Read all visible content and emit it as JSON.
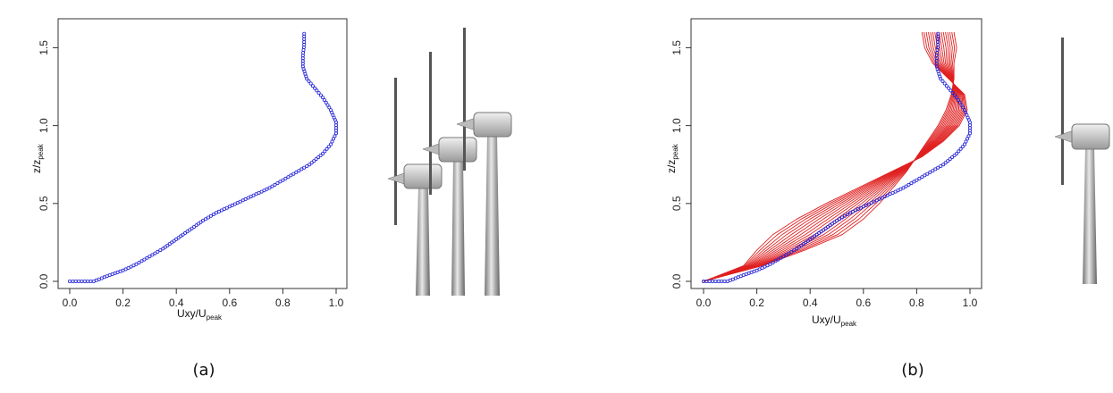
{
  "chart_data": [
    {
      "panel": "a",
      "type": "scatter",
      "caption": "(a)",
      "xlabel": "Uxy/U",
      "xlabel_sub": "peak",
      "ylabel": "z/z",
      "ylabel_sub": "peak",
      "xlim": [
        0,
        1.0
      ],
      "ylim": [
        0,
        1.6
      ],
      "xticks": [
        "0.0",
        "0.2",
        "0.4",
        "0.6",
        "0.8",
        "1.0"
      ],
      "yticks": [
        "0.0",
        "0.5",
        "1.0",
        "1.5"
      ],
      "marker_color": "#1f1fd6",
      "series": [
        {
          "points": [
            [
              0.0,
              0.0
            ],
            [
              0.09,
              0.0
            ],
            [
              0.12,
              0.02
            ],
            [
              0.15,
              0.04
            ],
            [
              0.2,
              0.07
            ],
            [
              0.25,
              0.11
            ],
            [
              0.3,
              0.16
            ],
            [
              0.35,
              0.21
            ],
            [
              0.4,
              0.27
            ],
            [
              0.45,
              0.33
            ],
            [
              0.5,
              0.39
            ],
            [
              0.55,
              0.44
            ],
            [
              0.6,
              0.48
            ],
            [
              0.65,
              0.52
            ],
            [
              0.7,
              0.56
            ],
            [
              0.75,
              0.6
            ],
            [
              0.8,
              0.65
            ],
            [
              0.85,
              0.7
            ],
            [
              0.9,
              0.75
            ],
            [
              0.95,
              0.82
            ],
            [
              0.98,
              0.88
            ],
            [
              1.0,
              0.95
            ],
            [
              1.0,
              1.02
            ],
            [
              0.98,
              1.1
            ],
            [
              0.95,
              1.18
            ],
            [
              0.92,
              1.24
            ],
            [
              0.89,
              1.3
            ],
            [
              0.875,
              1.38
            ],
            [
              0.875,
              1.45
            ],
            [
              0.88,
              1.52
            ],
            [
              0.88,
              1.59
            ]
          ]
        }
      ]
    },
    {
      "panel": "b",
      "type": "line",
      "caption": "(b)",
      "xlabel": "Uxy/U",
      "xlabel_sub": "peak",
      "ylabel": "z/z",
      "ylabel_sub": "peak",
      "xlim": [
        0,
        1.0
      ],
      "ylim": [
        0,
        1.6
      ],
      "xticks": [
        "0.0",
        "0.2",
        "0.4",
        "0.6",
        "0.8",
        "1.0"
      ],
      "yticks": [
        "0.0",
        "0.5",
        "1.0",
        "1.5"
      ],
      "marker_color": "#1f1fd6",
      "line_color": "#e02020",
      "series": [
        {
          "points": [
            [
              0.0,
              0.0
            ],
            [
              0.09,
              0.0
            ],
            [
              0.12,
              0.02
            ],
            [
              0.15,
              0.04
            ],
            [
              0.2,
              0.07
            ],
            [
              0.25,
              0.11
            ],
            [
              0.3,
              0.16
            ],
            [
              0.35,
              0.21
            ],
            [
              0.4,
              0.27
            ],
            [
              0.45,
              0.33
            ],
            [
              0.5,
              0.39
            ],
            [
              0.55,
              0.44
            ],
            [
              0.6,
              0.48
            ],
            [
              0.65,
              0.52
            ],
            [
              0.7,
              0.56
            ],
            [
              0.75,
              0.6
            ],
            [
              0.8,
              0.65
            ],
            [
              0.85,
              0.7
            ],
            [
              0.9,
              0.75
            ],
            [
              0.95,
              0.82
            ],
            [
              0.98,
              0.88
            ],
            [
              1.0,
              0.95
            ],
            [
              1.0,
              1.02
            ],
            [
              0.98,
              1.1
            ],
            [
              0.95,
              1.18
            ],
            [
              0.92,
              1.24
            ],
            [
              0.89,
              1.3
            ],
            [
              0.875,
              1.38
            ],
            [
              0.875,
              1.45
            ],
            [
              0.88,
              1.52
            ],
            [
              0.88,
              1.59
            ]
          ]
        }
      ],
      "red_lines": {
        "count": 16,
        "y": [
          0.0,
          0.1,
          0.2,
          0.3,
          0.4,
          0.5,
          0.6,
          0.7,
          0.8,
          0.9,
          1.0,
          1.1,
          1.2,
          1.3,
          1.4,
          1.5,
          1.6
        ],
        "x_first": [
          0.0,
          0.22,
          0.38,
          0.52,
          0.6,
          0.66,
          0.71,
          0.76,
          0.8,
          0.84,
          0.88,
          0.91,
          0.93,
          0.94,
          0.94,
          0.95,
          0.94
        ],
        "x_last": [
          0.0,
          0.15,
          0.2,
          0.26,
          0.35,
          0.46,
          0.58,
          0.7,
          0.82,
          0.9,
          0.96,
          0.99,
          0.98,
          0.92,
          0.86,
          0.83,
          0.82
        ]
      }
    }
  ]
}
